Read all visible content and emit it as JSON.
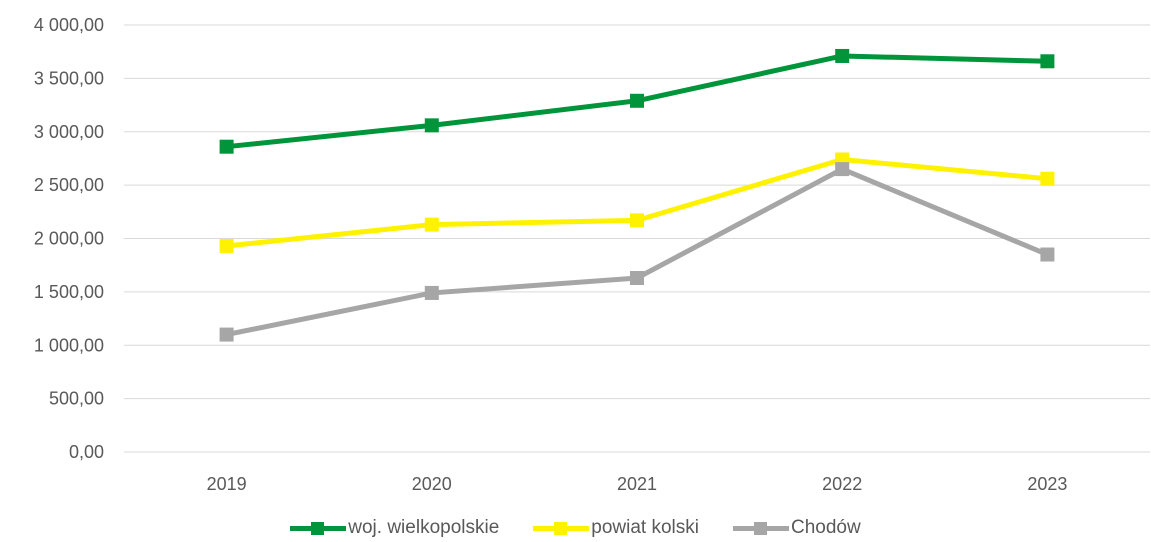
{
  "chart_data": {
    "type": "line",
    "title": "",
    "xlabel": "",
    "ylabel": "",
    "categories": [
      "2019",
      "2020",
      "2021",
      "2022",
      "2023"
    ],
    "ylim": [
      0,
      4000
    ],
    "ytick_labels": [
      "0,00",
      "500,00",
      "1 000,00",
      "1 500,00",
      "2 000,00",
      "2 500,00",
      "3 000,00",
      "3 500,00",
      "4 000,00"
    ],
    "ytick_values": [
      0,
      500,
      1000,
      1500,
      2000,
      2500,
      3000,
      3500,
      4000
    ],
    "grid": "horizontal",
    "legend_position": "bottom",
    "series": [
      {
        "name": "woj. wielkopolskie",
        "color": "#00953A",
        "marker": "square",
        "values": [
          2860,
          3060,
          3290,
          3710,
          3660
        ]
      },
      {
        "name": "powiat kolski",
        "color": "#FFF200",
        "marker": "square",
        "values": [
          1930,
          2130,
          2170,
          2740,
          2560
        ]
      },
      {
        "name": "Chodów",
        "color": "#A6A6A6",
        "marker": "square",
        "values": [
          1100,
          1490,
          1630,
          2650,
          1850
        ]
      }
    ]
  }
}
